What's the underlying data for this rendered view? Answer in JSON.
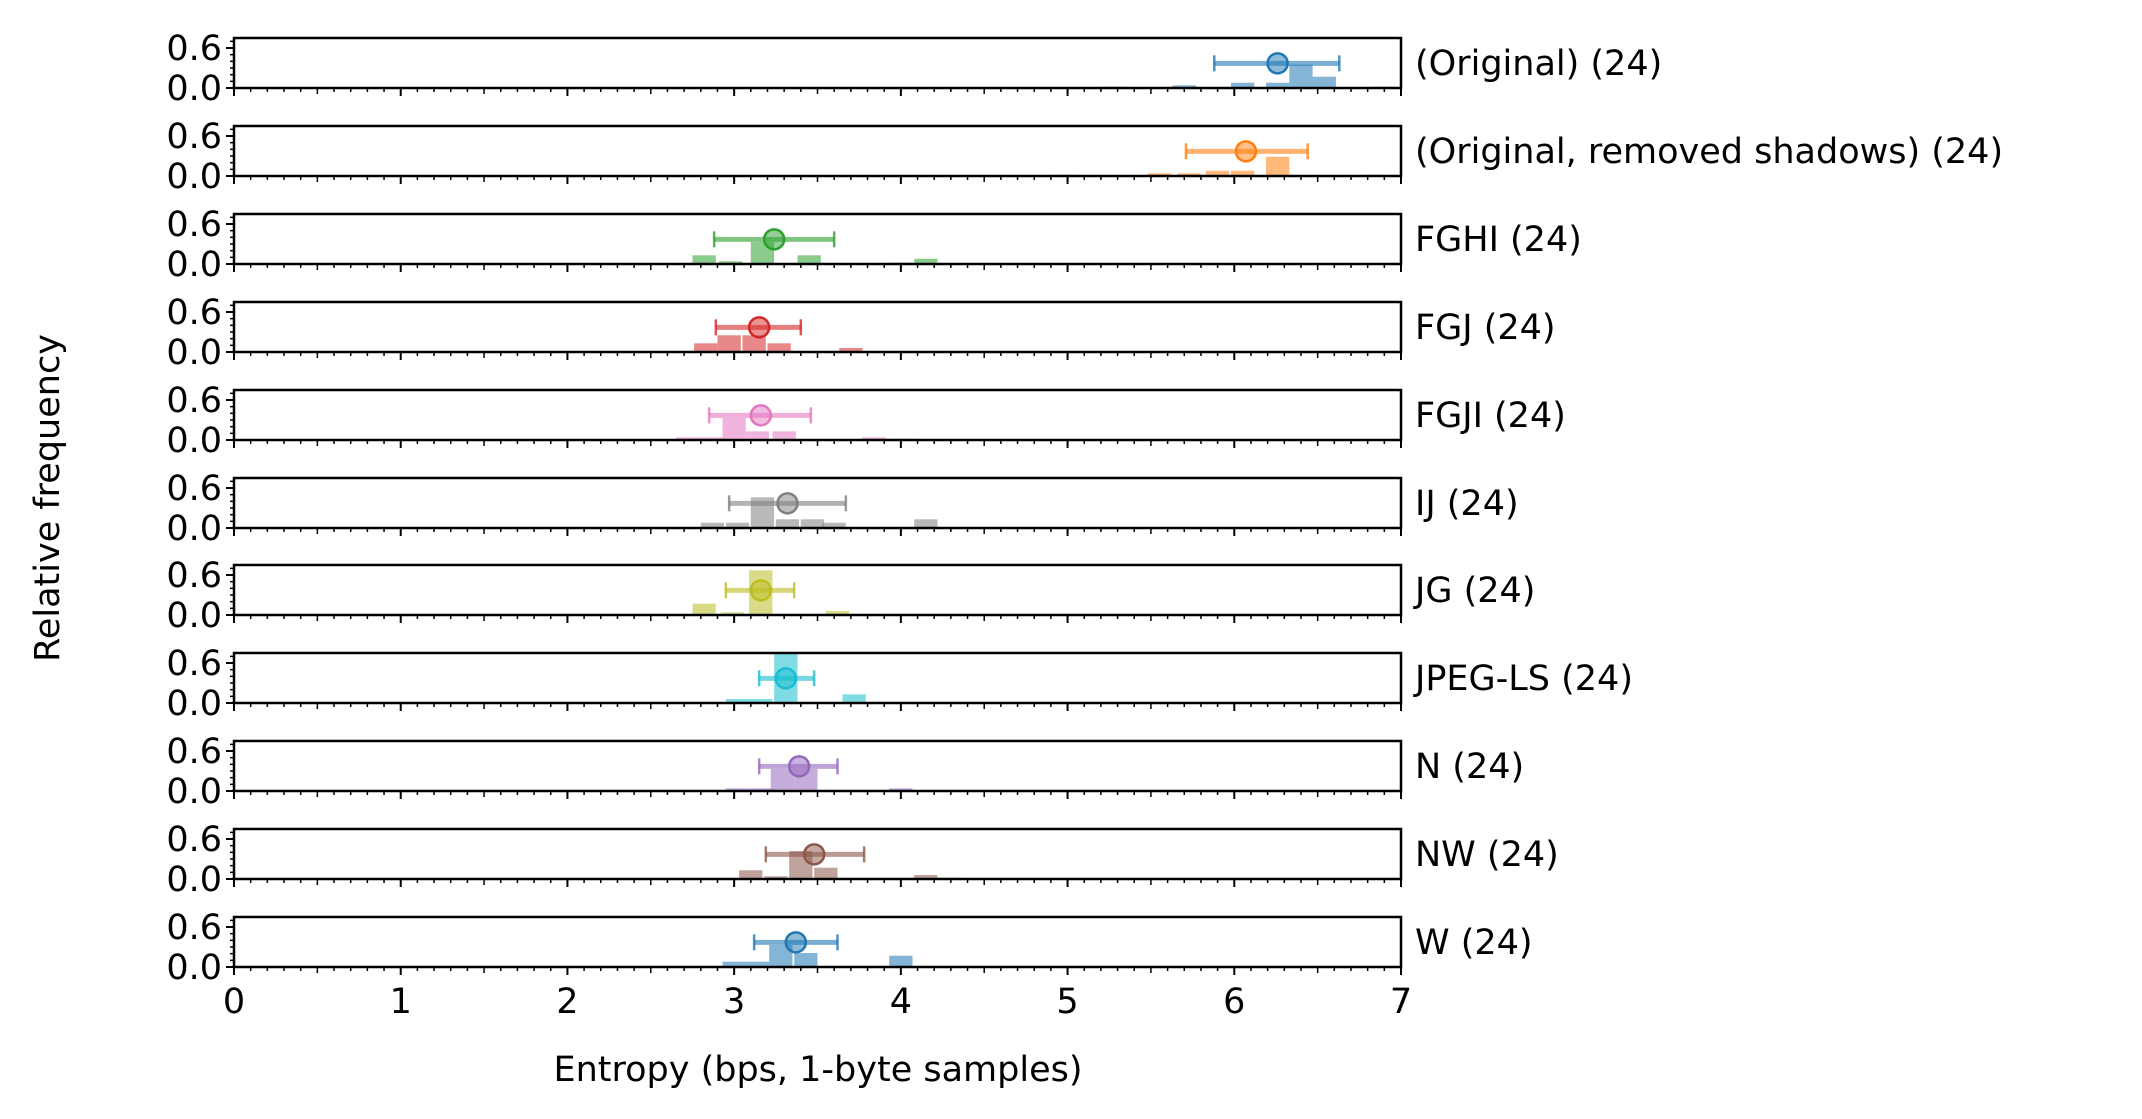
{
  "chart_data": {
    "type": "histogram",
    "xlabel": "Entropy (bps, 1-byte samples)",
    "ylabel": "Relative frequency",
    "xlim": [
      0,
      7
    ],
    "ylim": [
      0,
      0.75
    ],
    "x_ticks": [
      "0",
      "1",
      "2",
      "3",
      "4",
      "5",
      "6",
      "7"
    ],
    "y_ticks": [
      "0.0",
      "0.6"
    ],
    "bin_width": 0.14,
    "grid": false,
    "panels": [
      {
        "label": "(Original) (24)",
        "color": "#1f77b4",
        "mean": 6.26,
        "err_low": 5.88,
        "err_high": 6.63,
        "mean_y": 0.37,
        "bars": [
          [
            5.28,
            0.02
          ],
          [
            5.7,
            0.04
          ],
          [
            6.05,
            0.08
          ],
          [
            6.26,
            0.08
          ],
          [
            6.4,
            0.35
          ],
          [
            6.54,
            0.17
          ],
          [
            6.89,
            0.02
          ]
        ]
      },
      {
        "label": "(Original, removed shadows) (24)",
        "color": "#ff7f0e",
        "mean": 6.07,
        "err_low": 5.71,
        "err_high": 6.44,
        "mean_y": 0.37,
        "bars": [
          [
            4.98,
            0.02
          ],
          [
            5.55,
            0.04
          ],
          [
            5.73,
            0.04
          ],
          [
            5.9,
            0.08
          ],
          [
            6.05,
            0.08
          ],
          [
            6.26,
            0.29
          ],
          [
            6.83,
            0.02
          ]
        ]
      },
      {
        "label": "FGHI (24)",
        "color": "#2ca02c",
        "mean": 3.24,
        "err_low": 2.88,
        "err_high": 3.6,
        "mean_y": 0.37,
        "bars": [
          [
            2.82,
            0.13
          ],
          [
            2.98,
            0.04
          ],
          [
            3.17,
            0.33
          ],
          [
            3.45,
            0.13
          ],
          [
            4.0,
            0.02
          ],
          [
            4.15,
            0.08
          ]
        ]
      },
      {
        "label": "FGJ (24)",
        "color": "#d62728",
        "mean": 3.15,
        "err_low": 2.89,
        "err_high": 3.4,
        "mean_y": 0.37,
        "bars": [
          [
            2.83,
            0.13
          ],
          [
            2.97,
            0.25
          ],
          [
            3.12,
            0.25
          ],
          [
            3.27,
            0.13
          ],
          [
            3.7,
            0.06
          ]
        ]
      },
      {
        "label": "FGJI (24)",
        "color": "#e377c2",
        "mean": 3.16,
        "err_low": 2.85,
        "err_high": 3.46,
        "mean_y": 0.37,
        "bars": [
          [
            2.72,
            0.04
          ],
          [
            2.86,
            0.04
          ],
          [
            3.0,
            0.33
          ],
          [
            3.14,
            0.13
          ],
          [
            3.3,
            0.13
          ],
          [
            3.84,
            0.04
          ],
          [
            4.0,
            0.02
          ]
        ]
      },
      {
        "label": "IJ (24)",
        "color": "#7f7f7f",
        "mean": 3.32,
        "err_low": 2.97,
        "err_high": 3.67,
        "mean_y": 0.37,
        "bars": [
          [
            2.87,
            0.08
          ],
          [
            3.02,
            0.08
          ],
          [
            3.17,
            0.46
          ],
          [
            3.32,
            0.13
          ],
          [
            3.47,
            0.13
          ],
          [
            3.6,
            0.08
          ],
          [
            4.15,
            0.13
          ]
        ]
      },
      {
        "label": "JG (24)",
        "color": "#bcbd22",
        "mean": 3.16,
        "err_low": 2.95,
        "err_high": 3.36,
        "mean_y": 0.37,
        "bars": [
          [
            2.82,
            0.17
          ],
          [
            2.99,
            0.04
          ],
          [
            3.16,
            0.67
          ],
          [
            3.62,
            0.06
          ],
          [
            3.78,
            0.02
          ]
        ]
      },
      {
        "label": "JPEG-LS (24)",
        "color": "#17becf",
        "mean": 3.31,
        "err_low": 3.15,
        "err_high": 3.48,
        "mean_y": 0.37,
        "bars": [
          [
            3.02,
            0.06
          ],
          [
            3.16,
            0.06
          ],
          [
            3.31,
            0.75
          ],
          [
            3.72,
            0.13
          ]
        ]
      },
      {
        "label": "N (24)",
        "color": "#9467bd",
        "mean": 3.39,
        "err_low": 3.15,
        "err_high": 3.62,
        "mean_y": 0.37,
        "bars": [
          [
            3.02,
            0.04
          ],
          [
            3.16,
            0.04
          ],
          [
            3.29,
            0.33
          ],
          [
            3.43,
            0.33
          ],
          [
            4.0,
            0.04
          ]
        ]
      },
      {
        "label": "NW (24)",
        "color": "#8c564b",
        "mean": 3.48,
        "err_low": 3.19,
        "err_high": 3.78,
        "mean_y": 0.37,
        "bars": [
          [
            3.1,
            0.13
          ],
          [
            3.25,
            0.04
          ],
          [
            3.4,
            0.42
          ],
          [
            3.55,
            0.17
          ],
          [
            4.15,
            0.06
          ],
          [
            4.3,
            0.02
          ]
        ]
      },
      {
        "label": "W (24)",
        "color": "#1f77b4",
        "mean": 3.37,
        "err_low": 3.12,
        "err_high": 3.62,
        "mean_y": 0.37,
        "bars": [
          [
            3.0,
            0.08
          ],
          [
            3.14,
            0.08
          ],
          [
            3.28,
            0.33
          ],
          [
            3.43,
            0.21
          ],
          [
            4.0,
            0.17
          ]
        ]
      }
    ]
  }
}
